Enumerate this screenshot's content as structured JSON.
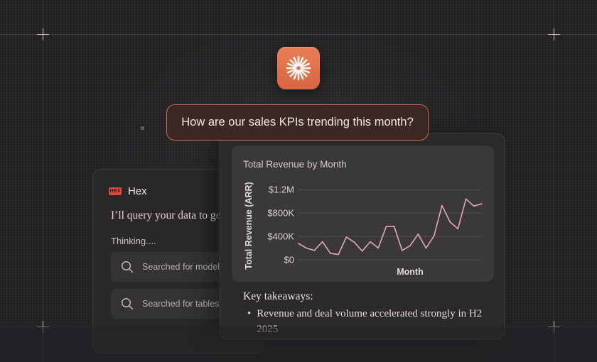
{
  "prompt": "How are our sales KPIs trending this month?",
  "hex_panel": {
    "name": "Hex",
    "logo_text": "HEX",
    "query_text": "I’ll query your data to g",
    "query_fade": "et",
    "thinking": "Thinking....",
    "searches": [
      "Searched for models",
      "Searched for tables"
    ]
  },
  "colors": {
    "accent": "#d8653f",
    "line": "#e2a9b2",
    "bubble_border": "#c8694a"
  },
  "chart_data": {
    "type": "line",
    "title": "Total Revenue by Month",
    "xlabel": "Month",
    "ylabel": "Total Revenue (ARR)",
    "ylim": [
      0,
      1300000
    ],
    "yticks": [
      0,
      400000,
      800000,
      1200000
    ],
    "ytick_labels": [
      "$0",
      "$400K",
      "$800K",
      "$1.2M"
    ],
    "grid": true,
    "series": [
      {
        "values": [
          280000,
          200000,
          160000,
          310000,
          110000,
          90000,
          390000,
          300000,
          150000,
          310000,
          200000,
          570000,
          570000,
          160000,
          240000,
          440000,
          200000,
          410000,
          930000,
          650000,
          530000,
          1040000,
          920000,
          960000
        ]
      }
    ]
  },
  "takeaways": {
    "title": "Key takeaways:",
    "items": [
      "Revenue and deal volume accelerated strongly in H2 2025"
    ]
  }
}
